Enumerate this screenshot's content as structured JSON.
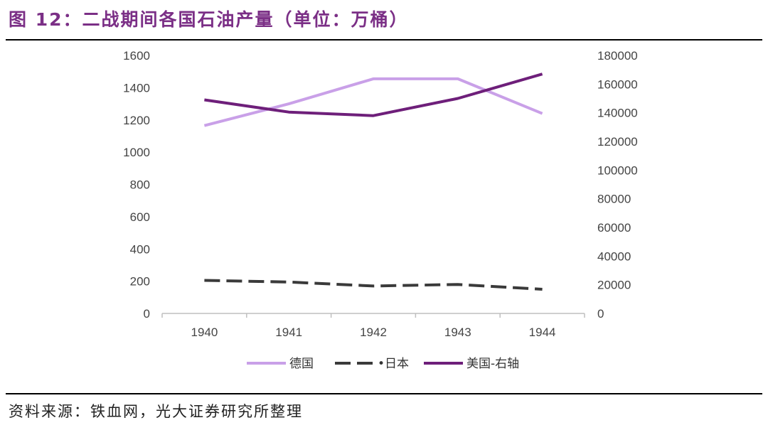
{
  "header": {
    "title": "图 12：二战期间各国石油产量（单位：万桶）"
  },
  "footer": {
    "source": "资料来源：铁血网，光大证券研究所整理"
  },
  "chart_data": {
    "type": "line",
    "categories": [
      "1940",
      "1941",
      "1942",
      "1943",
      "1944"
    ],
    "y_left": {
      "ticks": [
        "0",
        "200",
        "400",
        "600",
        "800",
        "1000",
        "1200",
        "1400",
        "1600"
      ],
      "ylim": [
        0,
        1600
      ]
    },
    "y_right": {
      "ticks": [
        "0",
        "20000",
        "40000",
        "60000",
        "80000",
        "100000",
        "120000",
        "140000",
        "160000",
        "180000"
      ],
      "ylim": [
        0,
        180000
      ]
    },
    "series": [
      {
        "name": "德国",
        "axis": "left",
        "color": "#c9a0e8",
        "dash": "solid",
        "values": [
          1165,
          1300,
          1455,
          1455,
          1240
        ]
      },
      {
        "name": "日本",
        "legend_marker": "•",
        "axis": "left",
        "color": "#3a3a3a",
        "dash": "dashed",
        "values": [
          205,
          195,
          170,
          180,
          150
        ]
      },
      {
        "name": "美国-右轴",
        "axis": "right",
        "color": "#6e1f7a",
        "dash": "solid",
        "values": [
          149000,
          140500,
          138000,
          150000,
          167000
        ]
      }
    ],
    "grid": false,
    "legend_position": "bottom"
  }
}
